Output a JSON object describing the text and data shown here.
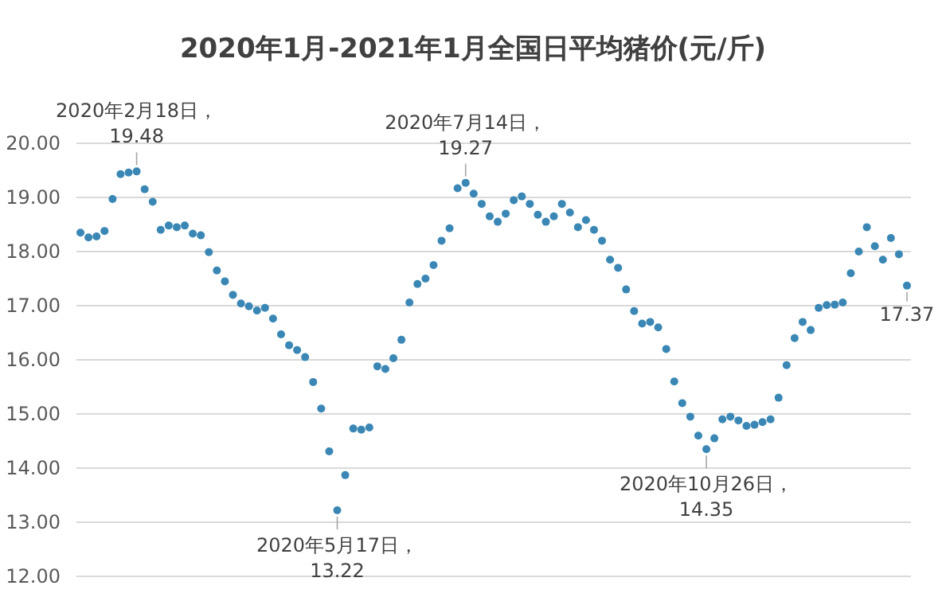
{
  "chart_data": {
    "type": "scatter",
    "title": "2020年1月-2021年1月全国日平均猪价(元/斤)",
    "categories": [
      null,
      null,
      null,
      null,
      null,
      null,
      null,
      null,
      null,
      null,
      null,
      null,
      null,
      null,
      null,
      null,
      null,
      null,
      null,
      null,
      null,
      null,
      null,
      null,
      null,
      null,
      null,
      null,
      null,
      null,
      null,
      null,
      null,
      null,
      null,
      null,
      null,
      null,
      null,
      null,
      null,
      null,
      null,
      null,
      null,
      null,
      null,
      null,
      null,
      null,
      null,
      null,
      null,
      null,
      null,
      null,
      null,
      null,
      null,
      null,
      null,
      null,
      null,
      null,
      null,
      null,
      null,
      null,
      null,
      null,
      null,
      null,
      null,
      null,
      null,
      null,
      null,
      null,
      null,
      null,
      null,
      null,
      null,
      null,
      null,
      null,
      null,
      null,
      null,
      null,
      null,
      null,
      null,
      null,
      null,
      null,
      null,
      null,
      null,
      null,
      null,
      null,
      null,
      null
    ],
    "series": [
      {
        "color": "#3a87b5",
        "values": [
          18.35,
          18.26,
          18.28,
          18.38,
          18.97,
          19.43,
          19.46,
          19.48,
          19.15,
          18.92,
          18.4,
          18.48,
          18.45,
          18.48,
          18.33,
          18.3,
          17.99,
          17.65,
          17.45,
          17.2,
          17.04,
          16.99,
          16.91,
          16.96,
          16.76,
          16.47,
          16.27,
          16.18,
          16.05,
          15.59,
          15.1,
          14.31,
          13.22,
          13.87,
          14.73,
          14.71,
          14.75,
          15.88,
          15.83,
          16.03,
          16.37,
          17.06,
          17.4,
          17.5,
          17.75,
          18.2,
          18.43,
          19.17,
          19.27,
          19.07,
          18.88,
          18.65,
          18.55,
          18.7,
          18.95,
          19.02,
          18.88,
          18.68,
          18.55,
          18.65,
          18.88,
          18.72,
          18.45,
          18.58,
          18.4,
          18.2,
          17.85,
          17.7,
          17.3,
          16.9,
          16.67,
          16.7,
          16.6,
          16.2,
          15.6,
          15.2,
          14.95,
          14.6,
          14.35,
          14.55,
          14.9,
          14.95,
          14.88,
          14.78,
          14.8,
          14.85,
          14.9,
          15.3,
          15.9,
          16.4,
          16.7,
          16.55,
          16.96,
          17.01,
          17.02,
          17.06,
          17.6,
          18.0,
          18.45,
          18.1,
          17.85,
          18.25,
          17.95,
          17.37
        ],
        "value_labels": [
          null,
          null,
          null,
          null,
          null,
          null,
          null,
          null,
          null,
          null,
          null,
          null,
          null,
          null,
          null,
          null,
          null,
          null,
          null,
          null,
          null,
          null,
          null,
          null,
          null,
          null,
          null,
          null,
          null,
          null,
          null,
          null,
          null,
          null,
          null,
          null,
          null,
          null,
          null,
          null,
          null,
          null,
          null,
          null,
          null,
          null,
          null,
          null,
          null,
          null,
          null,
          null,
          null,
          null,
          null,
          null,
          null,
          null,
          null,
          null,
          null,
          null,
          null,
          null,
          null,
          null,
          null,
          null,
          null,
          null,
          null,
          null,
          null,
          null,
          null,
          null,
          null,
          null,
          null,
          null,
          null,
          null,
          null,
          null,
          null,
          null,
          null,
          null,
          null,
          null,
          null,
          null,
          null,
          null,
          null,
          null,
          null,
          null,
          null,
          null,
          null,
          null,
          null,
          "17.37"
        ]
      }
    ],
    "ylim": [
      12,
      20
    ],
    "yticks": [
      {
        "value": 12,
        "label": "12.00"
      },
      {
        "value": 13,
        "label": "13.00"
      },
      {
        "value": 14,
        "label": "14.00"
      },
      {
        "value": 15,
        "label": "15.00"
      },
      {
        "value": 16,
        "label": "16.00"
      },
      {
        "value": 17,
        "label": "17.00"
      },
      {
        "value": 18,
        "label": "18.00"
      },
      {
        "value": 19,
        "label": "19.00"
      },
      {
        "value": 20,
        "label": "20.00"
      }
    ],
    "grid": "y",
    "tick_labels": "y",
    "marker": "circle",
    "annotations": [
      {
        "text": "2020年2月18日，\n19.48",
        "y": 19.48
      },
      {
        "text": "2020年5月17日，\n13.22",
        "y": 13.22
      },
      {
        "text": "2020年7月14日，\n19.27",
        "y": 19.27
      },
      {
        "text": "2020年10月26日，\n14.35",
        "y": 14.35
      }
    ]
  }
}
